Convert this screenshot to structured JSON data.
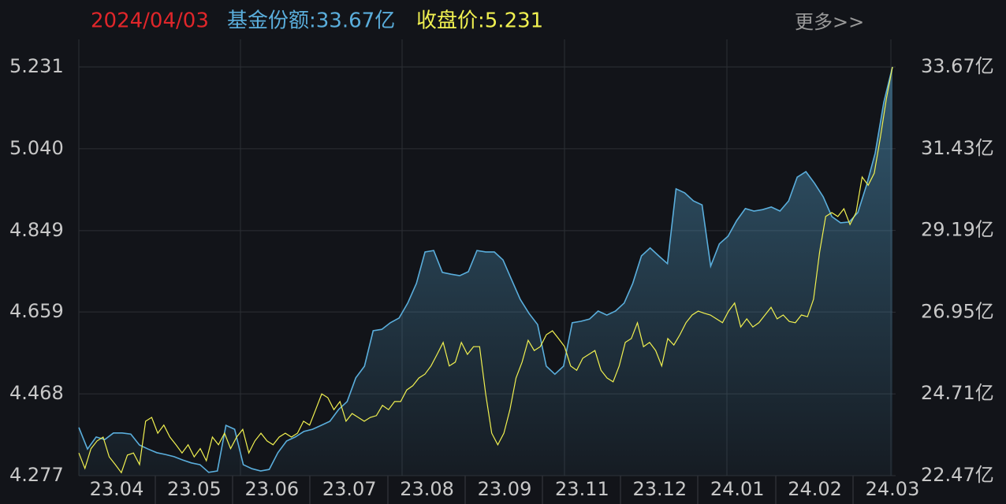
{
  "chart_data": {
    "type": "line",
    "date": "2024/04/03",
    "shares_label": "基金份额:33.67亿",
    "close_label": "收盘价:5.231",
    "more": "更多>>",
    "x_labels": [
      "23.04",
      "23.05",
      "23.06",
      "23.07",
      "23.08",
      "23.09",
      "23.11",
      "23.12",
      "24.01",
      "24.02",
      "24.03"
    ],
    "ylim": [
      4.277,
      5.231
    ],
    "yticks": [
      4.277,
      4.468,
      4.659,
      4.849,
      {
        "value": 5.04,
        "label": "5.040"
      },
      5.231
    ],
    "y2lim": [
      22.47,
      33.67
    ],
    "y2ticks": [
      {
        "value": 22.47,
        "label": "22.47亿"
      },
      {
        "value": 24.71,
        "label": "24.71亿"
      },
      {
        "value": 26.95,
        "label": "26.95亿"
      },
      {
        "value": 29.19,
        "label": "29.19亿"
      },
      {
        "value": 31.43,
        "label": "31.43亿"
      },
      {
        "value": 33.67,
        "label": "33.67亿"
      }
    ],
    "grid": true,
    "series": [
      {
        "color": "#5aaedc",
        "axis": "y2",
        "area": true,
        "values": [
          23.79,
          23.2,
          23.53,
          23.46,
          23.64,
          23.64,
          23.61,
          23.31,
          23.2,
          23.1,
          23.05,
          22.99,
          22.9,
          22.82,
          22.77,
          22.56,
          22.6,
          23.85,
          23.74,
          22.77,
          22.66,
          22.6,
          22.64,
          23.1,
          23.42,
          23.53,
          23.68,
          23.74,
          23.85,
          23.96,
          24.28,
          24.5,
          25.15,
          25.47,
          26.44,
          26.48,
          26.66,
          26.79,
          27.2,
          27.74,
          28.6,
          28.64,
          28.04,
          27.99,
          27.95,
          28.06,
          28.64,
          28.6,
          28.6,
          28.38,
          27.84,
          27.3,
          26.92,
          26.61,
          25.47,
          25.25,
          25.47,
          26.66,
          26.7,
          26.76,
          26.98,
          26.87,
          26.98,
          27.2,
          27.74,
          28.49,
          28.71,
          28.49,
          28.28,
          30.33,
          30.22,
          30.0,
          29.89,
          28.21,
          28.82,
          29.03,
          29.46,
          29.79,
          29.72,
          29.76,
          29.83,
          29.72,
          30.0,
          30.65,
          30.8,
          30.48,
          30.11,
          29.57,
          29.4,
          29.42,
          29.68,
          30.43,
          31.3,
          32.7,
          33.67
        ]
      },
      {
        "color": "#f0f050",
        "axis": "y",
        "values": [
          4.33,
          4.294,
          4.34,
          4.358,
          4.367,
          4.321,
          4.303,
          4.284,
          4.325,
          4.33,
          4.303,
          4.404,
          4.413,
          4.376,
          4.395,
          4.367,
          4.349,
          4.33,
          4.349,
          4.321,
          4.34,
          4.312,
          4.367,
          4.349,
          4.376,
          4.34,
          4.367,
          4.385,
          4.33,
          4.358,
          4.376,
          4.358,
          4.349,
          4.367,
          4.376,
          4.367,
          4.376,
          4.404,
          4.395,
          4.431,
          4.468,
          4.459,
          4.431,
          4.45,
          4.404,
          4.422,
          4.413,
          4.404,
          4.413,
          4.417,
          4.441,
          4.431,
          4.45,
          4.45,
          4.477,
          4.487,
          4.505,
          4.514,
          4.533,
          4.56,
          4.588,
          4.533,
          4.542,
          4.588,
          4.56,
          4.578,
          4.578,
          4.468,
          4.376,
          4.349,
          4.376,
          4.431,
          4.505,
          4.542,
          4.593,
          4.569,
          4.578,
          4.606,
          4.615,
          4.597,
          4.578,
          4.533,
          4.523,
          4.551,
          4.56,
          4.569,
          4.523,
          4.505,
          4.496,
          4.533,
          4.588,
          4.597,
          4.634,
          4.578,
          4.588,
          4.569,
          4.533,
          4.597,
          4.582,
          4.606,
          4.634,
          4.652,
          4.661,
          4.656,
          4.652,
          4.643,
          4.634,
          4.661,
          4.68,
          4.624,
          4.643,
          4.624,
          4.634,
          4.652,
          4.67,
          4.643,
          4.652,
          4.637,
          4.634,
          4.652,
          4.648,
          4.689,
          4.799,
          4.882,
          4.891,
          4.882,
          4.9,
          4.863,
          4.891,
          4.974,
          4.955,
          4.983,
          5.066,
          5.157,
          5.231
        ]
      }
    ]
  }
}
